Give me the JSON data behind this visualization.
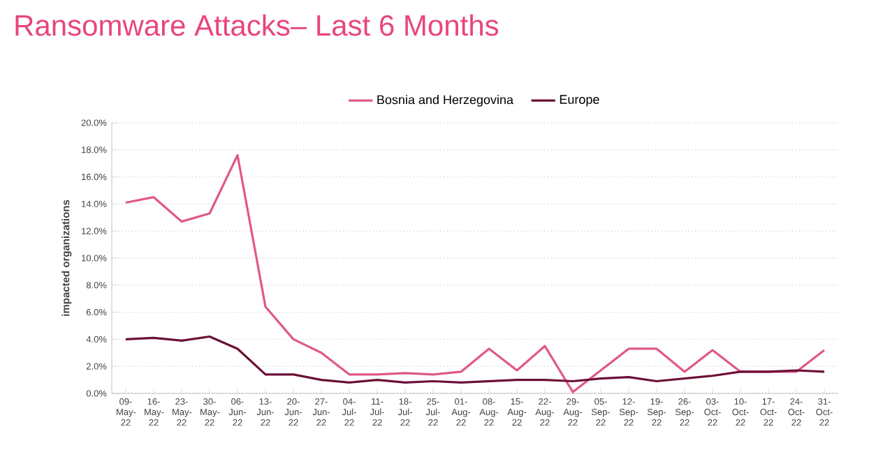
{
  "chart_data": {
    "type": "line",
    "title": "Ransomware Attacks– Last 6 Months",
    "ylabel": "impacted organizations",
    "categories": [
      "09-May-22",
      "16-May-22",
      "23-May-22",
      "30-May-22",
      "06-Jun-22",
      "13-Jun-22",
      "20-Jun-22",
      "27-Jun-22",
      "04-Jul-22",
      "11-Jul-22",
      "18-Jul-22",
      "25-Jul-22",
      "01-Aug-22",
      "08-Aug-22",
      "15-Aug-22",
      "22-Aug-22",
      "29-Aug-22",
      "05-Sep-22",
      "12-Sep-22",
      "19-Sep-22",
      "26-Sep-22",
      "03-Oct-22",
      "10-Oct-22",
      "17-Oct-22",
      "24-Oct-22",
      "31-Oct-22"
    ],
    "series": [
      {
        "name": "Bosnia and Herzegovina",
        "color": "#e0588a",
        "values": [
          14.1,
          14.5,
          12.7,
          13.3,
          17.6,
          6.4,
          4.0,
          3.0,
          1.4,
          1.4,
          1.5,
          1.4,
          1.6,
          3.3,
          1.7,
          3.5,
          0.1,
          1.7,
          3.3,
          3.3,
          1.6,
          3.2,
          1.6,
          1.6,
          1.6,
          3.2
        ]
      },
      {
        "name": "Europe",
        "color": "#6b1036",
        "values": [
          4.0,
          4.1,
          3.9,
          4.2,
          3.3,
          1.4,
          1.4,
          1.0,
          0.8,
          1.0,
          0.8,
          0.9,
          0.8,
          0.9,
          1.0,
          1.0,
          0.9,
          1.1,
          1.2,
          0.9,
          1.1,
          1.3,
          1.6,
          1.6,
          1.7,
          1.6
        ]
      }
    ],
    "ylim": [
      0,
      20
    ],
    "yticks": [
      {
        "value": 0,
        "label": "0.0%"
      },
      {
        "value": 2,
        "label": "2.0%"
      },
      {
        "value": 4,
        "label": "4.0%"
      },
      {
        "value": 6,
        "label": "6.0%"
      },
      {
        "value": 8,
        "label": "8.0%"
      },
      {
        "value": 10,
        "label": "10.0%"
      },
      {
        "value": 12,
        "label": "12.0%"
      },
      {
        "value": 14,
        "label": "14.0%"
      },
      {
        "value": 16,
        "label": "16.0%"
      },
      {
        "value": 18,
        "label": "18.0%"
      },
      {
        "value": 20,
        "label": "20.0%"
      }
    ],
    "grid": "y",
    "legend": "top",
    "marker": "none",
    "line_style": "solid"
  }
}
